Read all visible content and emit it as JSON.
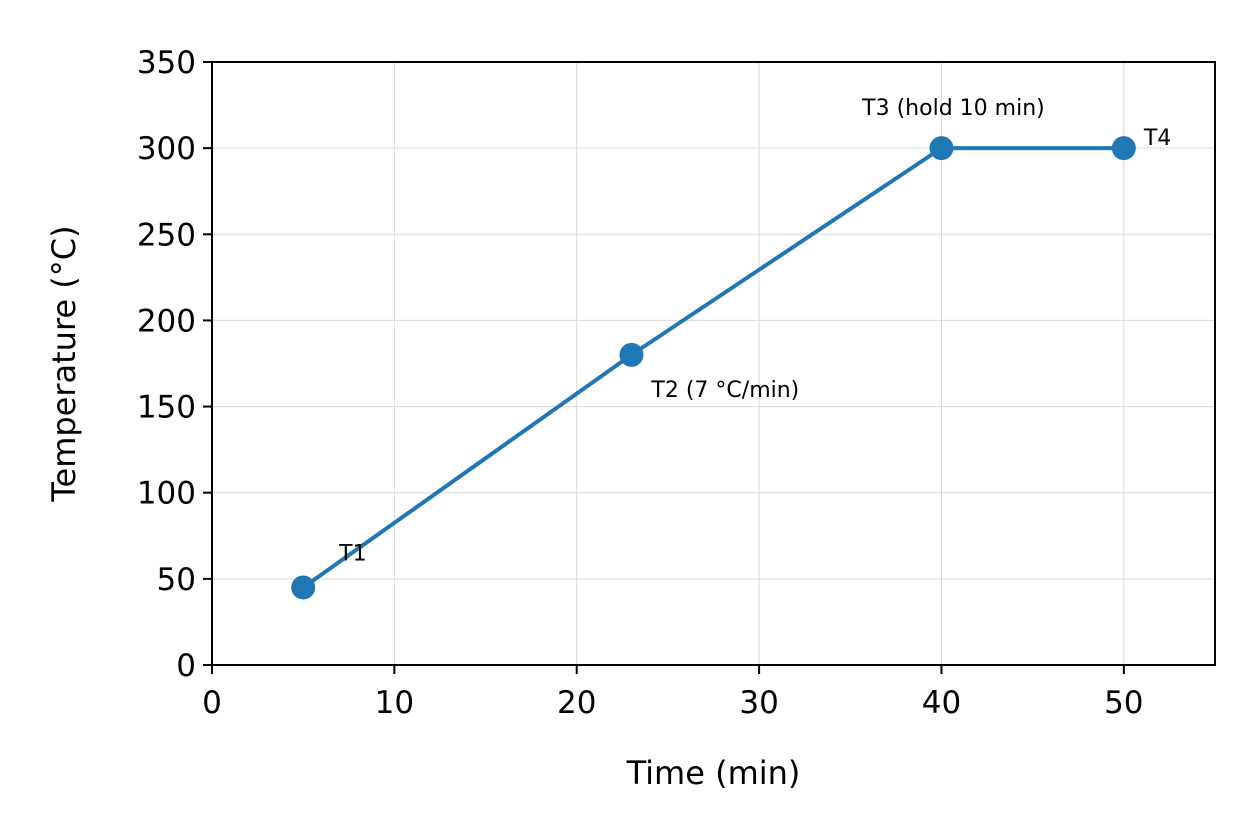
{
  "chart_data": {
    "type": "line",
    "title": "",
    "xlabel": "Time (min)",
    "ylabel": "Temperature (°C)",
    "xlim": [
      0,
      55
    ],
    "ylim": [
      0,
      350
    ],
    "xticks": [
      0,
      10,
      20,
      30,
      40,
      50
    ],
    "yticks": [
      0,
      50,
      100,
      150,
      200,
      250,
      300,
      350
    ],
    "grid": true,
    "legend": "none",
    "series": [
      {
        "color": "#1f77b4",
        "marker": "circle",
        "points": [
          {
            "x": 5,
            "y": 45,
            "label": "T1"
          },
          {
            "x": 23,
            "y": 180,
            "label": "T2 (7 °C/min)"
          },
          {
            "x": 40,
            "y": 300,
            "label": "T3 (hold 10 min)"
          },
          {
            "x": 50,
            "y": 300,
            "label": "T4"
          }
        ]
      }
    ]
  }
}
